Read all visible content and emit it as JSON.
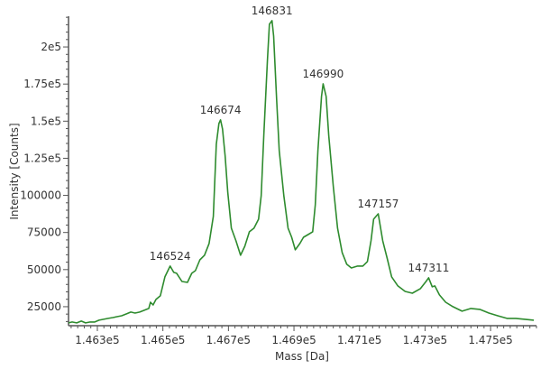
{
  "chart_data": {
    "type": "line",
    "title": "",
    "xlabel": "Mass [Da]",
    "ylabel": "Intensity [Counts]",
    "xlim": [
      146212,
      147640
    ],
    "ylim": [
      12200,
      220700
    ],
    "grid": false,
    "line_color": "#2e8b2e",
    "x_ticks": [
      {
        "value": 146300,
        "label": "1.463e5"
      },
      {
        "value": 146500,
        "label": "1.465e5"
      },
      {
        "value": 146700,
        "label": "1.467e5"
      },
      {
        "value": 146900,
        "label": "1.469e5"
      },
      {
        "value": 147100,
        "label": "1.471e5"
      },
      {
        "value": 147300,
        "label": "1.473e5"
      },
      {
        "value": 147500,
        "label": "1.475e5"
      }
    ],
    "y_ticks": [
      {
        "value": 25000,
        "label": "25000"
      },
      {
        "value": 50000,
        "label": "50000"
      },
      {
        "value": 75000,
        "label": "75000"
      },
      {
        "value": 100000,
        "label": "100000"
      },
      {
        "value": 125000,
        "label": "1.25e5"
      },
      {
        "value": 150000,
        "label": "1.5e5"
      },
      {
        "value": 175000,
        "label": "1.75e5"
      },
      {
        "value": 200000,
        "label": "2e5"
      }
    ],
    "peak_labels": [
      {
        "label": "146524",
        "x": 146522,
        "y": 52400
      },
      {
        "label": "146674",
        "x": 146676,
        "y": 150900
      },
      {
        "label": "146831",
        "x": 146833,
        "y": 217700
      },
      {
        "label": "146990",
        "x": 146989,
        "y": 175200
      },
      {
        "label": "147157",
        "x": 147157,
        "y": 87600
      },
      {
        "label": "147311",
        "x": 147311,
        "y": 44500
      }
    ],
    "x": [
      146212,
      146223,
      146237,
      146251,
      146264,
      146278,
      146292,
      146305,
      146319,
      146333,
      146347,
      146360,
      146374,
      146388,
      146402,
      146415,
      146429,
      146443,
      146457,
      146462,
      146470,
      146479,
      146492,
      146506,
      146522,
      146533,
      146542,
      146558,
      146575,
      146588,
      146599,
      146613,
      146627,
      146641,
      146654,
      146663,
      146671,
      146676,
      146682,
      146690,
      146698,
      146709,
      146723,
      146737,
      146750,
      146764,
      146778,
      146792,
      146800,
      146808,
      146819,
      146825,
      146833,
      146838,
      146847,
      146855,
      146869,
      146882,
      146893,
      146904,
      146918,
      146929,
      146943,
      146957,
      146965,
      146973,
      146984,
      146989,
      146998,
      147006,
      147020,
      147033,
      147047,
      147061,
      147075,
      147094,
      147110,
      147124,
      147135,
      147143,
      147157,
      147171,
      147185,
      147198,
      147217,
      147239,
      147261,
      147286,
      147303,
      147311,
      147322,
      147330,
      147344,
      147363,
      147385,
      147413,
      147440,
      147467,
      147495,
      147522,
      147550,
      147577,
      147605,
      147632
    ],
    "y": [
      14100,
      14700,
      14100,
      15300,
      14100,
      14700,
      14700,
      15900,
      16500,
      17100,
      17700,
      18300,
      18900,
      20100,
      21400,
      20700,
      21400,
      22600,
      23800,
      28000,
      26200,
      29900,
      32300,
      45100,
      52400,
      48100,
      47500,
      42000,
      41400,
      47500,
      49300,
      56600,
      59700,
      67600,
      85800,
      134400,
      148400,
      150900,
      144800,
      126600,
      102200,
      77900,
      69400,
      59700,
      65700,
      75500,
      77900,
      84000,
      99800,
      140500,
      191000,
      215300,
      217700,
      207400,
      164800,
      130200,
      99800,
      77900,
      71800,
      63300,
      67600,
      71800,
      73600,
      75500,
      93700,
      130200,
      166700,
      175200,
      166700,
      140500,
      105900,
      77900,
      61500,
      53600,
      51100,
      52400,
      52400,
      55400,
      69400,
      84000,
      87600,
      69400,
      57200,
      45100,
      39000,
      35300,
      34100,
      37200,
      42000,
      44500,
      38400,
      39000,
      32900,
      28000,
      25000,
      22000,
      23800,
      23200,
      20700,
      18900,
      17100,
      17100,
      16500,
      15900
    ]
  }
}
